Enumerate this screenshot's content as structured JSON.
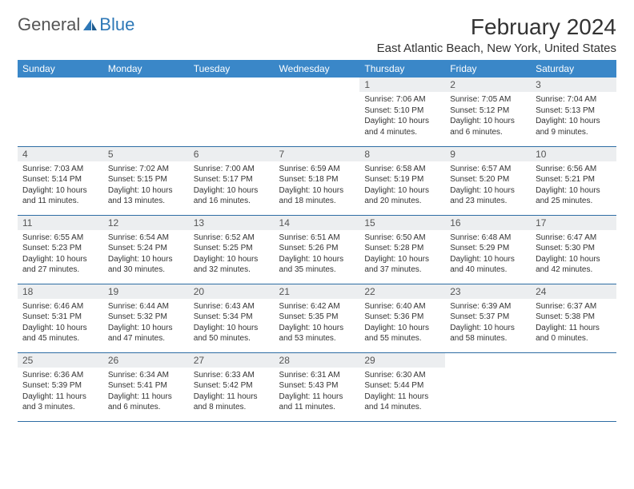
{
  "logo": {
    "text1": "General",
    "text2": "Blue"
  },
  "title": "February 2024",
  "location": "East Atlantic Beach, New York, United States",
  "colors": {
    "header_bg": "#3a87c8",
    "header_text": "#ffffff",
    "daynum_bg": "#eceef0",
    "row_border": "#2e6da4",
    "logo_blue": "#2e78b7"
  },
  "day_headers": [
    "Sunday",
    "Monday",
    "Tuesday",
    "Wednesday",
    "Thursday",
    "Friday",
    "Saturday"
  ],
  "weeks": [
    [
      null,
      null,
      null,
      null,
      {
        "n": "1",
        "sr": "Sunrise: 7:06 AM",
        "ss": "Sunset: 5:10 PM",
        "d1": "Daylight: 10 hours",
        "d2": "and 4 minutes."
      },
      {
        "n": "2",
        "sr": "Sunrise: 7:05 AM",
        "ss": "Sunset: 5:12 PM",
        "d1": "Daylight: 10 hours",
        "d2": "and 6 minutes."
      },
      {
        "n": "3",
        "sr": "Sunrise: 7:04 AM",
        "ss": "Sunset: 5:13 PM",
        "d1": "Daylight: 10 hours",
        "d2": "and 9 minutes."
      }
    ],
    [
      {
        "n": "4",
        "sr": "Sunrise: 7:03 AM",
        "ss": "Sunset: 5:14 PM",
        "d1": "Daylight: 10 hours",
        "d2": "and 11 minutes."
      },
      {
        "n": "5",
        "sr": "Sunrise: 7:02 AM",
        "ss": "Sunset: 5:15 PM",
        "d1": "Daylight: 10 hours",
        "d2": "and 13 minutes."
      },
      {
        "n": "6",
        "sr": "Sunrise: 7:00 AM",
        "ss": "Sunset: 5:17 PM",
        "d1": "Daylight: 10 hours",
        "d2": "and 16 minutes."
      },
      {
        "n": "7",
        "sr": "Sunrise: 6:59 AM",
        "ss": "Sunset: 5:18 PM",
        "d1": "Daylight: 10 hours",
        "d2": "and 18 minutes."
      },
      {
        "n": "8",
        "sr": "Sunrise: 6:58 AM",
        "ss": "Sunset: 5:19 PM",
        "d1": "Daylight: 10 hours",
        "d2": "and 20 minutes."
      },
      {
        "n": "9",
        "sr": "Sunrise: 6:57 AM",
        "ss": "Sunset: 5:20 PM",
        "d1": "Daylight: 10 hours",
        "d2": "and 23 minutes."
      },
      {
        "n": "10",
        "sr": "Sunrise: 6:56 AM",
        "ss": "Sunset: 5:21 PM",
        "d1": "Daylight: 10 hours",
        "d2": "and 25 minutes."
      }
    ],
    [
      {
        "n": "11",
        "sr": "Sunrise: 6:55 AM",
        "ss": "Sunset: 5:23 PM",
        "d1": "Daylight: 10 hours",
        "d2": "and 27 minutes."
      },
      {
        "n": "12",
        "sr": "Sunrise: 6:54 AM",
        "ss": "Sunset: 5:24 PM",
        "d1": "Daylight: 10 hours",
        "d2": "and 30 minutes."
      },
      {
        "n": "13",
        "sr": "Sunrise: 6:52 AM",
        "ss": "Sunset: 5:25 PM",
        "d1": "Daylight: 10 hours",
        "d2": "and 32 minutes."
      },
      {
        "n": "14",
        "sr": "Sunrise: 6:51 AM",
        "ss": "Sunset: 5:26 PM",
        "d1": "Daylight: 10 hours",
        "d2": "and 35 minutes."
      },
      {
        "n": "15",
        "sr": "Sunrise: 6:50 AM",
        "ss": "Sunset: 5:28 PM",
        "d1": "Daylight: 10 hours",
        "d2": "and 37 minutes."
      },
      {
        "n": "16",
        "sr": "Sunrise: 6:48 AM",
        "ss": "Sunset: 5:29 PM",
        "d1": "Daylight: 10 hours",
        "d2": "and 40 minutes."
      },
      {
        "n": "17",
        "sr": "Sunrise: 6:47 AM",
        "ss": "Sunset: 5:30 PM",
        "d1": "Daylight: 10 hours",
        "d2": "and 42 minutes."
      }
    ],
    [
      {
        "n": "18",
        "sr": "Sunrise: 6:46 AM",
        "ss": "Sunset: 5:31 PM",
        "d1": "Daylight: 10 hours",
        "d2": "and 45 minutes."
      },
      {
        "n": "19",
        "sr": "Sunrise: 6:44 AM",
        "ss": "Sunset: 5:32 PM",
        "d1": "Daylight: 10 hours",
        "d2": "and 47 minutes."
      },
      {
        "n": "20",
        "sr": "Sunrise: 6:43 AM",
        "ss": "Sunset: 5:34 PM",
        "d1": "Daylight: 10 hours",
        "d2": "and 50 minutes."
      },
      {
        "n": "21",
        "sr": "Sunrise: 6:42 AM",
        "ss": "Sunset: 5:35 PM",
        "d1": "Daylight: 10 hours",
        "d2": "and 53 minutes."
      },
      {
        "n": "22",
        "sr": "Sunrise: 6:40 AM",
        "ss": "Sunset: 5:36 PM",
        "d1": "Daylight: 10 hours",
        "d2": "and 55 minutes."
      },
      {
        "n": "23",
        "sr": "Sunrise: 6:39 AM",
        "ss": "Sunset: 5:37 PM",
        "d1": "Daylight: 10 hours",
        "d2": "and 58 minutes."
      },
      {
        "n": "24",
        "sr": "Sunrise: 6:37 AM",
        "ss": "Sunset: 5:38 PM",
        "d1": "Daylight: 11 hours",
        "d2": "and 0 minutes."
      }
    ],
    [
      {
        "n": "25",
        "sr": "Sunrise: 6:36 AM",
        "ss": "Sunset: 5:39 PM",
        "d1": "Daylight: 11 hours",
        "d2": "and 3 minutes."
      },
      {
        "n": "26",
        "sr": "Sunrise: 6:34 AM",
        "ss": "Sunset: 5:41 PM",
        "d1": "Daylight: 11 hours",
        "d2": "and 6 minutes."
      },
      {
        "n": "27",
        "sr": "Sunrise: 6:33 AM",
        "ss": "Sunset: 5:42 PM",
        "d1": "Daylight: 11 hours",
        "d2": "and 8 minutes."
      },
      {
        "n": "28",
        "sr": "Sunrise: 6:31 AM",
        "ss": "Sunset: 5:43 PM",
        "d1": "Daylight: 11 hours",
        "d2": "and 11 minutes."
      },
      {
        "n": "29",
        "sr": "Sunrise: 6:30 AM",
        "ss": "Sunset: 5:44 PM",
        "d1": "Daylight: 11 hours",
        "d2": "and 14 minutes."
      },
      null,
      null
    ]
  ]
}
